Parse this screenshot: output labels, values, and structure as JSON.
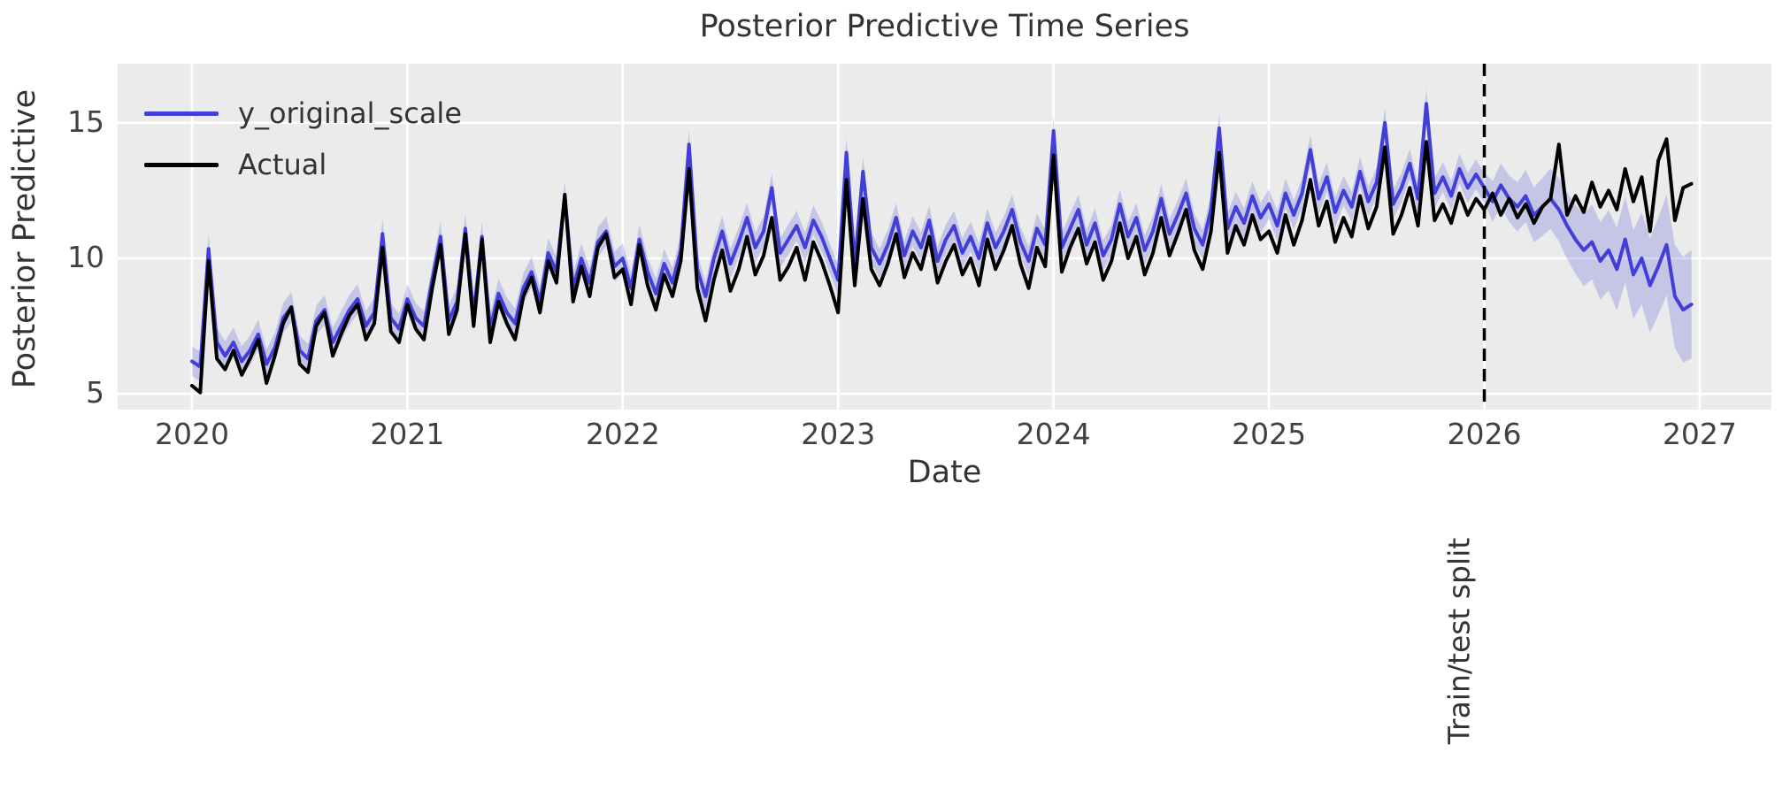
{
  "title": "Posterior Predictive Time Series",
  "chart_data": {
    "type": "line",
    "title": "Posterior Predictive Time Series",
    "xlabel": "Date",
    "ylabel": "Posterior Predictive",
    "background_color": "#ebebeb",
    "grid": true,
    "grid_color": "#ffffff",
    "x_ticks": [
      2020,
      2021,
      2022,
      2023,
      2024,
      2025,
      2026,
      2027
    ],
    "y_ticks": [
      15,
      10,
      5
    ],
    "xlim": [
      2019.655,
      2027.333
    ],
    "ylim": [
      4.42,
      17.18
    ],
    "x_start": 2020.0,
    "x_step_years": 0.0384615,
    "legend": {
      "location": "upper left"
    },
    "series": [
      {
        "name": "y_original_scale",
        "color": "#423fd8",
        "line_width": 4,
        "values": [
          6.2,
          6.0,
          10.35,
          6.9,
          6.4,
          6.9,
          6.2,
          6.6,
          7.2,
          6.1,
          6.7,
          7.8,
          8.2,
          6.6,
          6.3,
          7.7,
          8.1,
          6.9,
          7.5,
          8.1,
          8.5,
          7.5,
          8.0,
          10.9,
          7.8,
          7.4,
          8.5,
          7.8,
          7.5,
          9.2,
          10.8,
          7.7,
          8.4,
          11.1,
          7.9,
          10.8,
          7.4,
          8.7,
          8.0,
          7.6,
          8.9,
          9.5,
          8.4,
          10.2,
          9.5,
          12.3,
          8.9,
          10.0,
          9.1,
          10.6,
          11.0,
          9.7,
          10.0,
          8.9,
          10.7,
          9.5,
          8.7,
          9.8,
          9.1,
          10.3,
          14.2,
          9.6,
          8.6,
          10.0,
          11.0,
          9.8,
          10.6,
          11.5,
          10.4,
          11.0,
          12.6,
          10.2,
          10.7,
          11.2,
          10.4,
          11.4,
          10.8,
          10.0,
          9.2,
          13.9,
          9.8,
          13.2,
          10.4,
          9.8,
          10.5,
          11.5,
          10.1,
          11.0,
          10.4,
          11.4,
          9.9,
          10.7,
          11.2,
          10.2,
          10.8,
          10.0,
          11.3,
          10.4,
          11.0,
          11.8,
          10.6,
          9.9,
          11.1,
          10.5,
          14.7,
          10.4,
          11.1,
          11.8,
          10.5,
          11.3,
          10.1,
          10.7,
          12.0,
          10.8,
          11.5,
          10.3,
          11.0,
          12.2,
          10.9,
          11.6,
          12.4,
          11.1,
          10.5,
          11.8,
          14.8,
          11.1,
          11.9,
          11.3,
          12.3,
          11.5,
          12.0,
          11.2,
          12.4,
          11.6,
          12.4,
          14.0,
          12.2,
          13.0,
          11.7,
          12.5,
          11.9,
          13.2,
          12.1,
          12.8,
          15.0,
          12.0,
          12.6,
          13.5,
          12.2,
          15.7,
          12.4,
          13.0,
          12.3,
          13.3,
          12.6,
          13.1,
          12.6,
          12.1,
          12.7,
          12.2,
          11.9,
          12.3,
          11.6,
          11.9,
          12.2,
          11.8,
          11.2,
          10.7,
          10.3,
          10.6,
          9.9,
          10.3,
          9.6,
          10.7,
          9.4,
          10.0,
          9.0,
          9.7,
          10.5,
          8.6,
          8.1,
          8.3
        ]
      },
      {
        "name": "Actual",
        "color": "#000000",
        "line_width": 4,
        "values": [
          5.3,
          5.05,
          9.9,
          6.3,
          5.9,
          6.6,
          5.7,
          6.3,
          7.0,
          5.4,
          6.4,
          7.6,
          8.2,
          6.1,
          5.8,
          7.5,
          8.0,
          6.4,
          7.2,
          7.9,
          8.3,
          7.0,
          7.6,
          10.4,
          7.3,
          6.9,
          8.3,
          7.4,
          7.0,
          8.9,
          10.5,
          7.2,
          8.1,
          10.9,
          7.5,
          10.7,
          6.9,
          8.4,
          7.6,
          7.0,
          8.6,
          9.3,
          8.0,
          9.9,
          9.1,
          12.35,
          8.4,
          9.7,
          8.6,
          10.4,
          10.9,
          9.3,
          9.6,
          8.3,
          10.5,
          9.0,
          8.1,
          9.4,
          8.6,
          9.9,
          13.3,
          8.9,
          7.7,
          9.2,
          10.3,
          8.8,
          9.6,
          10.8,
          9.4,
          10.1,
          11.5,
          9.2,
          9.7,
          10.4,
          9.2,
          10.6,
          9.9,
          9.0,
          8.0,
          12.9,
          9.0,
          12.2,
          9.6,
          9.0,
          9.8,
          10.9,
          9.3,
          10.2,
          9.6,
          10.8,
          9.1,
          9.9,
          10.5,
          9.4,
          10.0,
          9.0,
          10.7,
          9.6,
          10.3,
          11.2,
          9.8,
          8.9,
          10.4,
          9.7,
          13.8,
          9.5,
          10.4,
          11.1,
          9.8,
          10.6,
          9.2,
          9.9,
          11.3,
          10.0,
          10.8,
          9.4,
          10.2,
          11.5,
          10.1,
          10.9,
          11.8,
          10.3,
          9.6,
          11.0,
          13.9,
          10.2,
          11.2,
          10.5,
          11.6,
          10.7,
          11.0,
          10.2,
          11.6,
          10.5,
          11.4,
          12.9,
          11.2,
          12.1,
          10.6,
          11.5,
          10.8,
          12.3,
          11.1,
          11.9,
          14.1,
          10.9,
          11.6,
          12.6,
          11.2,
          14.3,
          11.4,
          12.0,
          11.3,
          12.4,
          11.6,
          12.2,
          11.8,
          12.4,
          11.6,
          12.2,
          11.5,
          12.0,
          11.3,
          11.9,
          12.2,
          14.2,
          11.6,
          12.3,
          11.7,
          12.8,
          11.9,
          12.5,
          11.8,
          13.3,
          12.1,
          13.0,
          11.0,
          13.6,
          14.4,
          11.4,
          12.6,
          12.75
        ]
      }
    ],
    "uncertainty_band": {
      "series": "y_original_scale",
      "color": "#423fd8",
      "opacity": 0.22,
      "halfwidth_train": 0.55,
      "halfwidth_test_start": 0.7,
      "halfwidth_test_end": 2.0
    },
    "annotations": [
      {
        "type": "vline",
        "x": 2026.0,
        "style": "dashed",
        "color": "#000000",
        "label": "Train/test split"
      }
    ]
  }
}
